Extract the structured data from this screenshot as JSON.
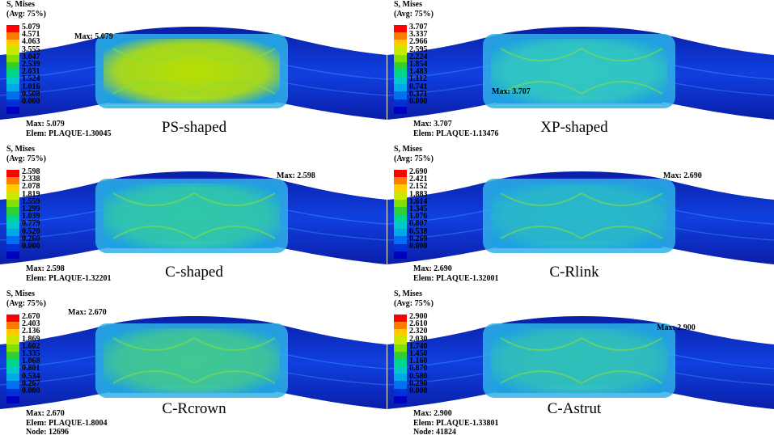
{
  "legend": {
    "title_line1": "S, Mises",
    "title_line2": "(Avg: 75%)",
    "colors": [
      "#ff0000",
      "#ff7a00",
      "#ffcc00",
      "#cce800",
      "#80e000",
      "#30d030",
      "#00d68a",
      "#00c8c8",
      "#00a8e8",
      "#0070f0",
      "#0030d8",
      "#0000c0"
    ]
  },
  "panels": [
    {
      "name": "PS-shaped",
      "ticks": [
        "5.079",
        "4.571",
        "4.063",
        "3.555",
        "3.047",
        "2.539",
        "2.031",
        "1.524",
        "1.016",
        "0.508",
        "0.000"
      ],
      "max_label": "Max: 5.079",
      "info_max": "Max: 5.079",
      "info_elem": "Elem: PLAQUE-1.30045",
      "info_node": "",
      "stress_color": "#b8e000"
    },
    {
      "name": "XP-shaped",
      "ticks": [
        "3.707",
        "3.337",
        "2.966",
        "2.595",
        "2.224",
        "1.854",
        "1.483",
        "1.112",
        "0.741",
        "0.371",
        "0.000"
      ],
      "max_label": "Max: 3.707",
      "info_max": "Max: 3.707",
      "info_elem": "Elem: PLAQUE-1.13476",
      "info_node": "",
      "stress_color": "#30c8c0"
    },
    {
      "name": "C-shaped",
      "ticks": [
        "2.598",
        "2.338",
        "2.078",
        "1.819",
        "1.559",
        "1.299",
        "1.039",
        "0.779",
        "0.520",
        "0.260",
        "0.000"
      ],
      "max_label": "Max: 2.598",
      "info_max": "Max: 2.598",
      "info_elem": "Elem: PLAQUE-1.32201",
      "info_node": "",
      "stress_color": "#30c8a8"
    },
    {
      "name": "C-Rlink",
      "ticks": [
        "2.690",
        "2.421",
        "2.152",
        "1.883",
        "1.614",
        "1.345",
        "1.076",
        "0.807",
        "0.538",
        "0.269",
        "0.000"
      ],
      "max_label": "Max: 2.690",
      "info_max": "Max: 2.690",
      "info_elem": "Elem: PLAQUE-1.32001",
      "info_node": "",
      "stress_color": "#28b8c8"
    },
    {
      "name": "C-Rcrown",
      "ticks": [
        "2.670",
        "2.403",
        "2.136",
        "1.869",
        "1.602",
        "1.335",
        "1.068",
        "0.801",
        "0.534",
        "0.267",
        "0.000"
      ],
      "max_label": "Max: 2.670",
      "info_max": "Max: 2.670",
      "info_elem": "Elem: PLAQUE-1.8004",
      "info_node": "Node: 12696",
      "stress_color": "#40c890"
    },
    {
      "name": "C-Astrut",
      "ticks": [
        "2.900",
        "2.610",
        "2.320",
        "2.030",
        "1.740",
        "1.450",
        "1.160",
        "0.870",
        "0.580",
        "0.290",
        "0.000"
      ],
      "max_label": "Max: 2.900",
      "info_max": "Max: 2.900",
      "info_elem": "Elem: PLAQUE-1.33801",
      "info_node": "Node: 41824",
      "stress_color": "#30c0b8"
    }
  ]
}
